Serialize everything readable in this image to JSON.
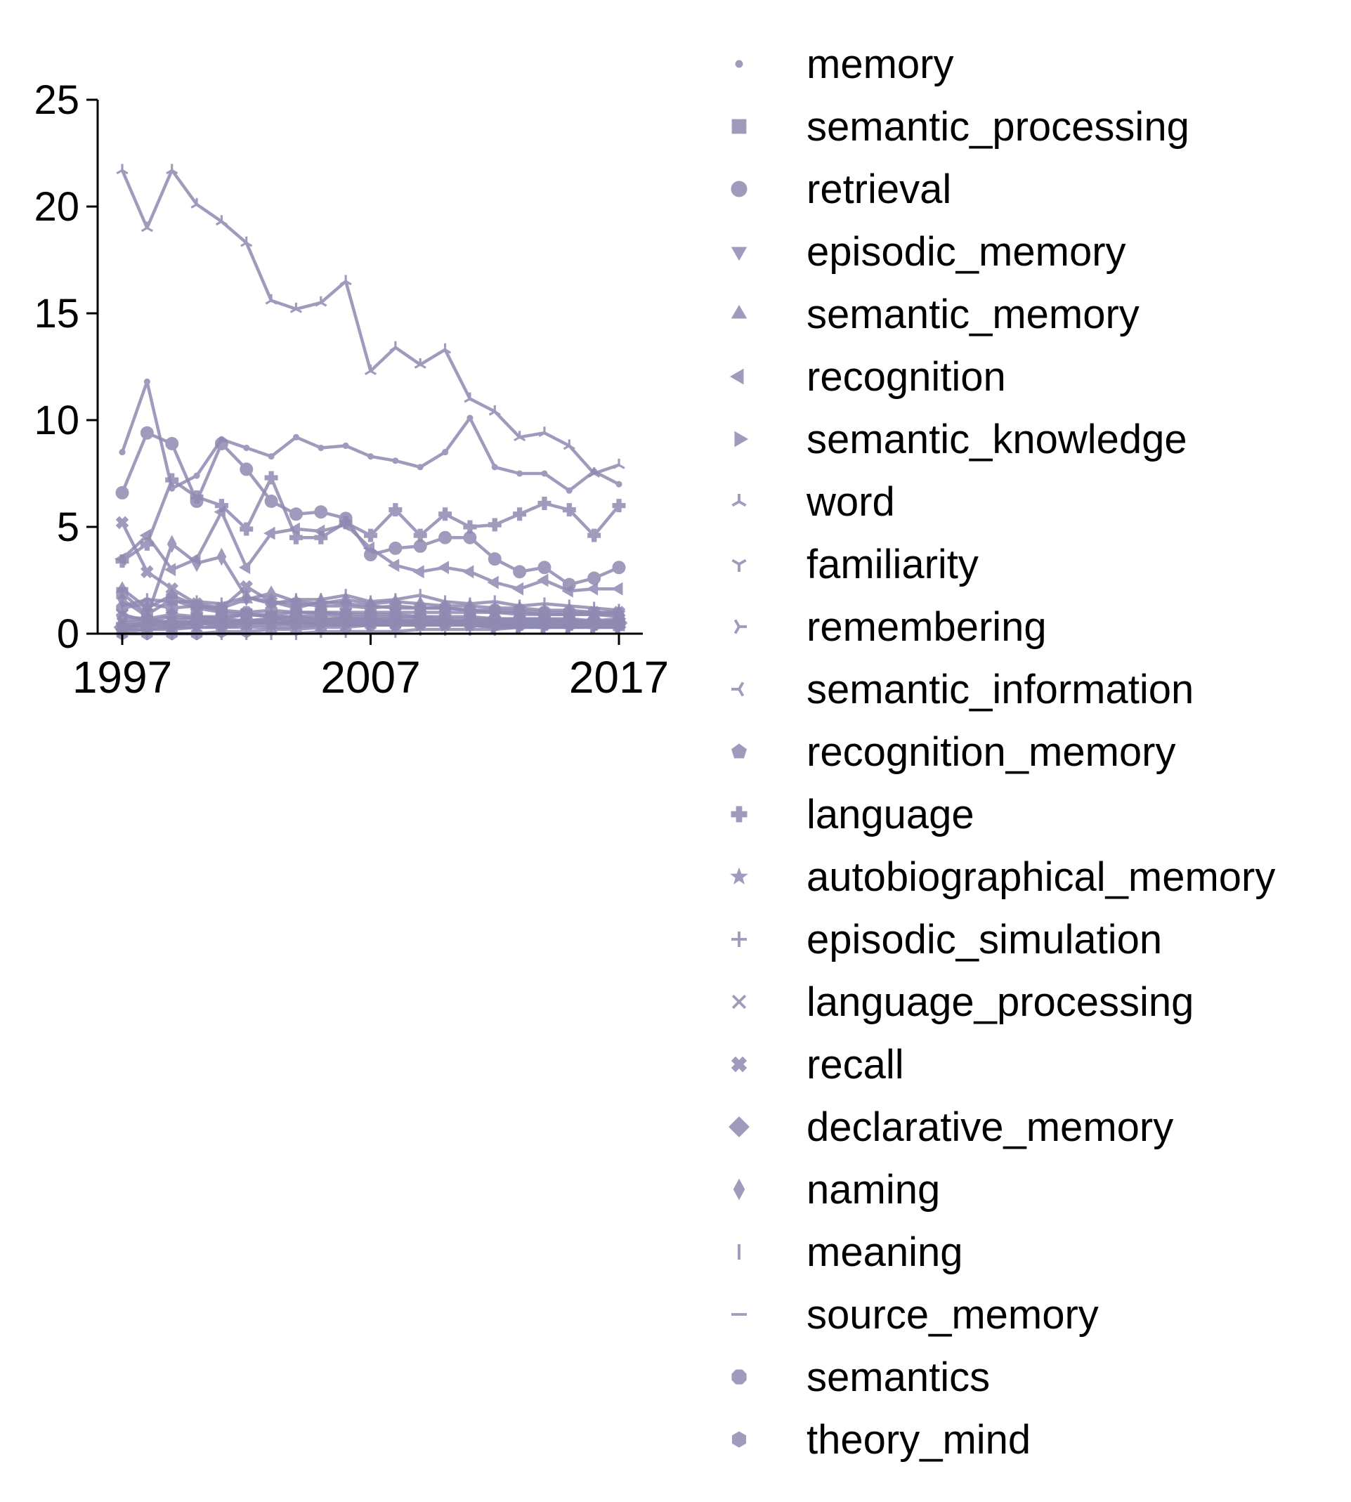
{
  "chart_data": {
    "type": "line",
    "x": [
      1997,
      1998,
      1999,
      2000,
      2001,
      2002,
      2003,
      2004,
      2005,
      2006,
      2007,
      2008,
      2009,
      2010,
      2011,
      2012,
      2013,
      2014,
      2015,
      2016,
      2017
    ],
    "xticks": [
      1997,
      2007,
      2017
    ],
    "yticks": [
      0,
      5,
      10,
      15,
      20,
      25
    ],
    "xlim": [
      1996,
      2018
    ],
    "ylim": [
      0,
      25
    ],
    "xlabel": "",
    "ylabel": "",
    "title": "",
    "grid": false,
    "legend_position": "right",
    "line_color": "#8f8ab2",
    "series": [
      {
        "name": "memory",
        "marker": "point",
        "values": [
          8.5,
          11.8,
          6.8,
          7.4,
          9.1,
          8.7,
          8.3,
          9.2,
          8.7,
          8.8,
          8.3,
          8.1,
          7.8,
          8.5,
          10.1,
          7.8,
          7.5,
          7.5,
          6.7,
          7.6,
          7.0
        ]
      },
      {
        "name": "semantic_processing",
        "marker": "square",
        "values": [
          1.9,
          0.9,
          1.6,
          1.2,
          1.0,
          0.9,
          0.8,
          0.8,
          0.7,
          0.7,
          0.7,
          0.6,
          0.6,
          0.6,
          0.6,
          0.5,
          0.5,
          0.5,
          0.5,
          0.5,
          0.4
        ]
      },
      {
        "name": "retrieval",
        "marker": "circle",
        "values": [
          6.6,
          9.4,
          8.9,
          6.2,
          8.9,
          7.7,
          6.2,
          5.6,
          5.7,
          5.4,
          3.7,
          4.0,
          4.1,
          4.5,
          4.5,
          3.5,
          2.9,
          3.1,
          2.3,
          2.6,
          3.1
        ]
      },
      {
        "name": "episodic_memory",
        "marker": "triangle-down",
        "values": [
          0.3,
          0.5,
          0.6,
          0.8,
          0.7,
          0.9,
          0.9,
          1.0,
          1.0,
          1.0,
          1.0,
          1.0,
          1.0,
          1.0,
          1.0,
          1.0,
          0.9,
          0.9,
          0.9,
          0.9,
          0.9
        ]
      },
      {
        "name": "semantic_memory",
        "marker": "triangle-up",
        "values": [
          2.1,
          1.2,
          1.8,
          1.3,
          1.2,
          1.6,
          1.9,
          1.5,
          1.4,
          1.6,
          1.4,
          1.5,
          1.4,
          1.3,
          1.3,
          1.2,
          1.2,
          1.1,
          1.1,
          1.0,
          1.0
        ]
      },
      {
        "name": "recognition",
        "marker": "triangle-left",
        "values": [
          3.5,
          4.6,
          3.0,
          3.5,
          5.7,
          3.1,
          4.7,
          4.9,
          4.8,
          5.1,
          4.0,
          3.2,
          2.9,
          3.1,
          2.9,
          2.4,
          2.1,
          2.5,
          2.0,
          2.1,
          2.1
        ]
      },
      {
        "name": "semantic_knowledge",
        "marker": "triangle-right",
        "values": [
          0.4,
          0.5,
          0.4,
          0.5,
          0.4,
          0.5,
          0.5,
          0.4,
          0.4,
          0.4,
          0.4,
          0.4,
          0.4,
          0.4,
          0.4,
          0.3,
          0.3,
          0.3,
          0.3,
          0.3,
          0.3
        ]
      },
      {
        "name": "word",
        "marker": "tri-down",
        "values": [
          21.7,
          19.0,
          21.7,
          20.1,
          19.3,
          18.3,
          15.6,
          15.2,
          15.5,
          16.5,
          12.3,
          13.4,
          12.6,
          13.3,
          11.0,
          10.4,
          9.2,
          9.4,
          8.8,
          7.5,
          7.9
        ]
      },
      {
        "name": "familiarity",
        "marker": "tri-up",
        "values": [
          0.2,
          0.4,
          0.3,
          0.5,
          0.4,
          0.5,
          0.5,
          0.6,
          0.5,
          0.5,
          0.5,
          0.5,
          0.5,
          0.5,
          0.4,
          0.4,
          0.4,
          0.4,
          0.4,
          0.4,
          0.3
        ]
      },
      {
        "name": "remembering",
        "marker": "tri-left",
        "values": [
          0.6,
          0.7,
          0.5,
          0.6,
          0.6,
          0.5,
          0.5,
          0.5,
          0.5,
          0.4,
          0.4,
          0.4,
          0.4,
          0.4,
          0.4,
          0.3,
          0.3,
          0.3,
          0.3,
          0.3,
          0.3
        ]
      },
      {
        "name": "semantic_information",
        "marker": "tri-right",
        "values": [
          0.5,
          0.6,
          0.5,
          0.6,
          0.5,
          0.6,
          0.5,
          0.5,
          0.5,
          0.5,
          0.5,
          0.4,
          0.4,
          0.4,
          0.4,
          0.4,
          0.4,
          0.4,
          0.4,
          0.4,
          0.4
        ]
      },
      {
        "name": "recognition_memory",
        "marker": "pentagon",
        "values": [
          0.8,
          0.7,
          0.9,
          0.8,
          0.8,
          0.9,
          0.8,
          0.8,
          0.9,
          0.8,
          0.8,
          0.8,
          0.8,
          0.7,
          0.7,
          0.7,
          0.7,
          0.7,
          0.6,
          0.6,
          0.6
        ]
      },
      {
        "name": "language",
        "marker": "plus-filled",
        "values": [
          3.4,
          4.2,
          7.2,
          6.4,
          6.0,
          4.9,
          7.3,
          4.5,
          4.5,
          5.2,
          4.6,
          5.8,
          4.6,
          5.6,
          5.0,
          5.1,
          5.6,
          6.1,
          5.8,
          4.6,
          6.0
        ]
      },
      {
        "name": "autobiographical_memory",
        "marker": "star",
        "values": [
          0.1,
          0.2,
          0.2,
          0.3,
          0.3,
          0.4,
          0.4,
          0.5,
          0.5,
          0.6,
          0.6,
          0.6,
          0.6,
          0.6,
          0.6,
          0.6,
          0.6,
          0.6,
          0.6,
          0.6,
          0.6
        ]
      },
      {
        "name": "episodic_simulation",
        "marker": "plus",
        "values": [
          0.0,
          0.0,
          0.0,
          0.0,
          0.0,
          0.0,
          0.0,
          0.0,
          0.1,
          0.1,
          0.1,
          0.1,
          0.2,
          0.2,
          0.2,
          0.2,
          0.3,
          0.3,
          0.3,
          0.3,
          0.3
        ]
      },
      {
        "name": "language_processing",
        "marker": "x",
        "values": [
          0.9,
          0.6,
          0.8,
          0.7,
          0.7,
          0.6,
          0.7,
          0.6,
          0.6,
          0.6,
          0.6,
          0.5,
          0.5,
          0.5,
          0.5,
          0.5,
          0.5,
          0.5,
          0.5,
          0.5,
          0.5
        ]
      },
      {
        "name": "recall",
        "marker": "x-filled",
        "values": [
          5.2,
          2.9,
          2.1,
          1.4,
          1.2,
          2.2,
          1.5,
          1.4,
          1.3,
          1.3,
          1.2,
          1.3,
          1.2,
          1.2,
          1.1,
          1.1,
          1.1,
          1.0,
          1.0,
          1.0,
          1.0
        ]
      },
      {
        "name": "declarative_memory",
        "marker": "diamond",
        "values": [
          0.3,
          0.4,
          0.4,
          0.5,
          0.6,
          0.6,
          0.7,
          0.7,
          0.7,
          0.7,
          0.7,
          0.7,
          0.7,
          0.6,
          0.6,
          0.6,
          0.6,
          0.6,
          0.6,
          0.5,
          0.5
        ]
      },
      {
        "name": "naming",
        "marker": "thin-diamond",
        "values": [
          1.6,
          0.8,
          4.2,
          3.3,
          3.6,
          1.7,
          1.5,
          1.2,
          1.5,
          1.4,
          1.3,
          1.2,
          1.2,
          1.2,
          1.1,
          1.0,
          1.0,
          0.9,
          0.9,
          0.9,
          0.8
        ]
      },
      {
        "name": "meaning",
        "marker": "vline",
        "values": [
          1.3,
          1.6,
          1.5,
          1.5,
          1.4,
          1.7,
          1.4,
          1.6,
          1.6,
          1.8,
          1.5,
          1.6,
          1.8,
          1.5,
          1.4,
          1.5,
          1.3,
          1.4,
          1.3,
          1.2,
          1.1
        ]
      },
      {
        "name": "source_memory",
        "marker": "hline",
        "values": [
          0.2,
          0.2,
          0.3,
          0.3,
          0.3,
          0.3,
          0.3,
          0.3,
          0.4,
          0.4,
          0.4,
          0.4,
          0.4,
          0.4,
          0.4,
          0.4,
          0.4,
          0.4,
          0.4,
          0.4,
          0.4
        ]
      },
      {
        "name": "semantics",
        "marker": "octagon",
        "values": [
          1.2,
          1.4,
          1.2,
          1.3,
          1.1,
          1.0,
          1.1,
          1.0,
          1.0,
          0.9,
          0.9,
          0.9,
          0.8,
          0.8,
          0.8,
          0.7,
          0.7,
          0.7,
          0.7,
          0.6,
          0.6
        ]
      },
      {
        "name": "theory_mind",
        "marker": "hexagon",
        "values": [
          0.0,
          0.0,
          0.0,
          0.0,
          0.1,
          0.1,
          0.2,
          0.2,
          0.3,
          0.3,
          0.4,
          0.4,
          0.5,
          0.5,
          0.5,
          0.5,
          0.6,
          0.6,
          0.6,
          0.6,
          0.7
        ]
      }
    ]
  }
}
